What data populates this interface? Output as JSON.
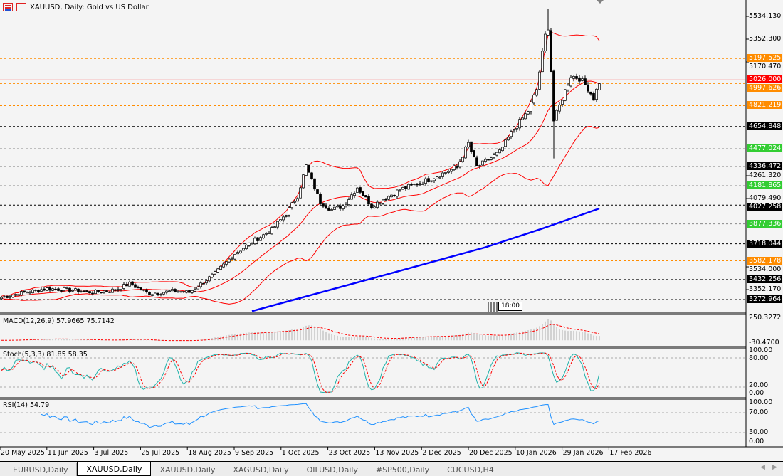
{
  "header": {
    "title": "XAUUSD, Daily:  Gold vs US Dollar",
    "icons": [
      "symbol-list-icon",
      "chart-window-icon"
    ]
  },
  "price_axis": {
    "ticks": [
      "5534.130",
      "5352.300",
      "5170.470",
      "4261.320",
      "4079.490",
      "3534.000",
      "3352.170"
    ],
    "levels": [
      {
        "label": "5197.525",
        "price": 5197.525,
        "kind": "orange"
      },
      {
        "label": "5026.000",
        "price": 5026.0,
        "kind": "red"
      },
      {
        "label": "4997.626",
        "price": 4997.626,
        "kind": "orange"
      },
      {
        "label": "4821.219",
        "price": 4821.219,
        "kind": "orange"
      },
      {
        "label": "4654.848",
        "price": 4654.848,
        "kind": "black"
      },
      {
        "label": "4477.024",
        "price": 4477.024,
        "kind": "green"
      },
      {
        "label": "4336.472",
        "price": 4336.472,
        "kind": "black"
      },
      {
        "label": "4181.865",
        "price": 4181.865,
        "kind": "green"
      },
      {
        "label": "4027.258",
        "price": 4027.258,
        "kind": "black"
      },
      {
        "label": "3877.336",
        "price": 3877.336,
        "kind": "green"
      },
      {
        "label": "3718.044",
        "price": 3718.044,
        "kind": "black"
      },
      {
        "label": "3582.178",
        "price": 3582.178,
        "kind": "orange"
      },
      {
        "label": "3432.256",
        "price": 3432.256,
        "kind": "black"
      },
      {
        "label": "3272.964",
        "price": 3272.964,
        "kind": "black"
      }
    ],
    "colors": {
      "orange": "#ff8c00",
      "red": "#ff0000",
      "black": "#000000",
      "green": "#32cd32"
    }
  },
  "session_marker": "18:00",
  "indicators": {
    "macd": {
      "label": "MACD(12,26,9) 57.9665 75.7142",
      "ticks": [
        "250.3272",
        "-30.4700"
      ]
    },
    "stoch": {
      "label": "Stoch(5,3,3) 81.85 58.35",
      "ticks": [
        "100.00",
        "80.00",
        "20.00",
        "0.00"
      ]
    },
    "rsi": {
      "label": "RSI(14) 54.79",
      "ticks": [
        "100.00",
        "70.00",
        "30.00",
        "0.00"
      ]
    }
  },
  "time_axis": [
    "20 May 2025",
    "11 Jun 2025",
    "3 Jul 2025",
    "25 Jul 2025",
    "18 Aug 2025",
    "9 Sep 2025",
    "1 Oct 2025",
    "23 Oct 2025",
    "13 Nov 2025",
    "2 Dec 2025",
    "20 Dec 2025",
    "10 Jan 2026",
    "29 Jan 2026",
    "17 Feb 2026"
  ],
  "tabs": [
    {
      "label": "EURUSD,Daily",
      "active": false
    },
    {
      "label": "XAUUSD,Daily",
      "active": true
    },
    {
      "label": "XAUUSD,Daily",
      "active": false
    },
    {
      "label": "XAGUSD,Daily",
      "active": false
    },
    {
      "label": "OILUSD,Daily",
      "active": false
    },
    {
      "label": "#SP500,Daily",
      "active": false
    },
    {
      "label": "CUCUSD,H4",
      "active": false
    }
  ],
  "chart_data": {
    "type": "candlestick",
    "symbol": "XAUUSD",
    "timeframe": "Daily",
    "ylim": [
      3200,
      5650
    ],
    "close_anchors": [
      [
        0,
        3290
      ],
      [
        8,
        3330
      ],
      [
        16,
        3360
      ],
      [
        24,
        3350
      ],
      [
        32,
        3330
      ],
      [
        40,
        3350
      ],
      [
        45,
        3400
      ],
      [
        52,
        3320
      ],
      [
        60,
        3340
      ],
      [
        66,
        3330
      ],
      [
        75,
        3480
      ],
      [
        82,
        3640
      ],
      [
        90,
        3760
      ],
      [
        95,
        3830
      ],
      [
        100,
        3960
      ],
      [
        104,
        4100
      ],
      [
        107,
        4340
      ],
      [
        112,
        4050
      ],
      [
        116,
        3990
      ],
      [
        120,
        4020
      ],
      [
        125,
        4170
      ],
      [
        130,
        4020
      ],
      [
        140,
        4150
      ],
      [
        150,
        4230
      ],
      [
        160,
        4330
      ],
      [
        164,
        4520
      ],
      [
        167,
        4330
      ],
      [
        175,
        4450
      ],
      [
        179,
        4600
      ],
      [
        185,
        4780
      ],
      [
        188,
        4950
      ],
      [
        191,
        5380
      ],
      [
        192,
        5450
      ],
      [
        193,
        5100
      ],
      [
        194,
        4700
      ],
      [
        197,
        4880
      ],
      [
        200,
        5060
      ],
      [
        203,
        5040
      ],
      [
        206,
        4960
      ],
      [
        208,
        4880
      ],
      [
        210,
        5010
      ]
    ],
    "extremes": [
      {
        "i": 192,
        "high": 5595
      },
      {
        "i": 194,
        "low": 4400
      }
    ],
    "moving_average": [
      [
        88,
        3180
      ],
      [
        130,
        3440
      ],
      [
        170,
        3690
      ],
      [
        190,
        3840
      ],
      [
        210,
        4000
      ]
    ],
    "bollinger": {
      "period": 20,
      "deviation": 2
    },
    "colors": {
      "bands": "#ff0000",
      "ma": "#0000ff",
      "stoch_main": "#20b2aa",
      "signal": "#ff0000",
      "rsi": "#1e90ff",
      "hist": "#b0b0b0"
    }
  }
}
